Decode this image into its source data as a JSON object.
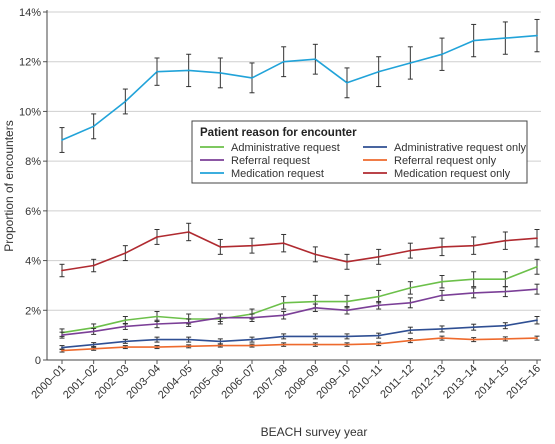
{
  "chart_data": {
    "type": "line",
    "xlabel": "BEACH survey year",
    "ylabel": "Proportion of encounters",
    "ylim": [
      0,
      14
    ],
    "y_ticks": [
      "0",
      "2%",
      "4%",
      "6%",
      "8%",
      "10%",
      "12%",
      "14%"
    ],
    "categories": [
      "2000–01",
      "2001–02",
      "2002–03",
      "2003–04",
      "2004–05",
      "2005–06",
      "2006–07",
      "2007–08",
      "2008–09",
      "2009–10",
      "2010–11",
      "2011–12",
      "2012–13",
      "2013–14",
      "2014–15",
      "2015–16"
    ],
    "legend": {
      "title": "Patient reason for encounter",
      "placement": "center-right"
    },
    "series": [
      {
        "name": "Administrative request",
        "color": "#6cc04a",
        "values": [
          1.1,
          1.3,
          1.6,
          1.75,
          1.65,
          1.65,
          1.85,
          2.3,
          2.35,
          2.35,
          2.55,
          2.9,
          3.15,
          3.25,
          3.25,
          3.75
        ],
        "errors": [
          0.15,
          0.15,
          0.15,
          0.2,
          0.2,
          0.2,
          0.2,
          0.25,
          0.25,
          0.25,
          0.25,
          0.25,
          0.25,
          0.3,
          0.3,
          0.3
        ]
      },
      {
        "name": "Referral request",
        "color": "#7b3f97",
        "values": [
          1.0,
          1.15,
          1.35,
          1.45,
          1.5,
          1.7,
          1.7,
          1.8,
          2.1,
          2.0,
          2.2,
          2.3,
          2.6,
          2.7,
          2.75,
          2.85
        ],
        "errors": [
          0.12,
          0.12,
          0.12,
          0.15,
          0.15,
          0.15,
          0.15,
          0.15,
          0.15,
          0.15,
          0.15,
          0.2,
          0.2,
          0.2,
          0.2,
          0.2
        ]
      },
      {
        "name": "Medication request",
        "color": "#21a3d9",
        "values": [
          8.85,
          9.4,
          10.4,
          11.6,
          11.65,
          11.55,
          11.35,
          12.0,
          12.1,
          11.15,
          11.6,
          11.95,
          12.3,
          12.85,
          12.95,
          13.05
        ],
        "errors": [
          0.5,
          0.5,
          0.5,
          0.55,
          0.65,
          0.6,
          0.6,
          0.6,
          0.6,
          0.6,
          0.6,
          0.65,
          0.65,
          0.65,
          0.65,
          0.65
        ]
      },
      {
        "name": "Administrative request only",
        "color": "#2f4f93",
        "values": [
          0.5,
          0.62,
          0.75,
          0.82,
          0.82,
          0.75,
          0.82,
          0.95,
          0.95,
          0.95,
          0.98,
          1.2,
          1.25,
          1.32,
          1.38,
          1.6
        ],
        "errors": [
          0.08,
          0.08,
          0.08,
          0.1,
          0.1,
          0.1,
          0.1,
          0.1,
          0.1,
          0.1,
          0.1,
          0.12,
          0.12,
          0.12,
          0.12,
          0.15
        ]
      },
      {
        "name": "Referral request only",
        "color": "#ee6a2d",
        "values": [
          0.38,
          0.45,
          0.52,
          0.52,
          0.55,
          0.58,
          0.58,
          0.62,
          0.62,
          0.62,
          0.65,
          0.78,
          0.88,
          0.82,
          0.85,
          0.88
        ],
        "errors": [
          0.06,
          0.06,
          0.06,
          0.06,
          0.06,
          0.06,
          0.06,
          0.07,
          0.07,
          0.07,
          0.07,
          0.08,
          0.08,
          0.08,
          0.08,
          0.08
        ]
      },
      {
        "name": "Medication request only",
        "color": "#b02a30",
        "values": [
          3.6,
          3.8,
          4.3,
          4.95,
          5.15,
          4.55,
          4.6,
          4.7,
          4.25,
          3.95,
          4.15,
          4.4,
          4.55,
          4.6,
          4.8,
          4.9
        ],
        "errors": [
          0.25,
          0.25,
          0.3,
          0.3,
          0.35,
          0.3,
          0.3,
          0.35,
          0.3,
          0.3,
          0.3,
          0.3,
          0.35,
          0.35,
          0.35,
          0.35
        ]
      }
    ]
  }
}
